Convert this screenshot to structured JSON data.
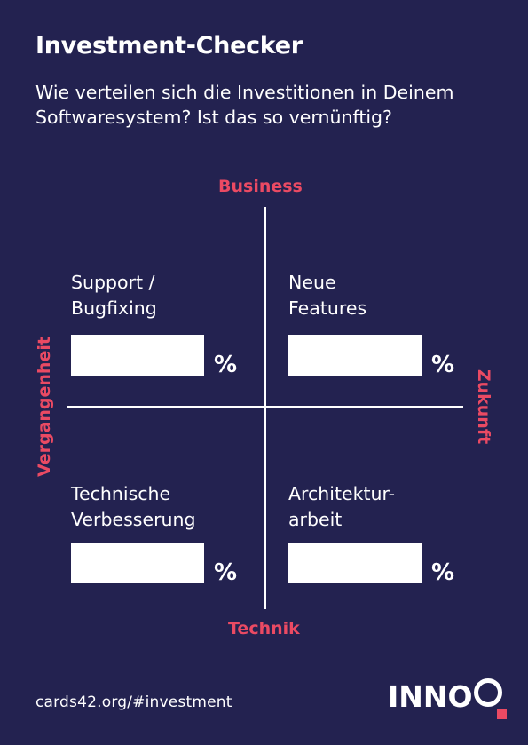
{
  "colors": {
    "background": "#232250",
    "accent": "#ea4a63",
    "text": "#ffffff"
  },
  "title": "Investment-Checker",
  "subtitle_line1": "Wie verteilen sich die Investitionen in Deinem",
  "subtitle_line2": "Softwaresystem? Ist das so vernünftig?",
  "axes": {
    "top": "Business",
    "bottom": "Technik",
    "left": "Vergangenheit",
    "right": "Zukunft"
  },
  "quadrants": [
    {
      "line1": "Support /",
      "line2": "Bugfixing",
      "value": "",
      "unit": "%"
    },
    {
      "line1": "Neue",
      "line2": "Features",
      "value": "",
      "unit": "%"
    },
    {
      "line1": "Technische",
      "line2": "Verbesserung",
      "value": "",
      "unit": "%"
    },
    {
      "line1": "Architektur-",
      "line2": "arbeit",
      "value": "",
      "unit": "%"
    }
  ],
  "footer": {
    "link": "cards42.org/#investment"
  },
  "logo": {
    "text": "INNOQ",
    "icon": "innoq-logo-icon"
  }
}
